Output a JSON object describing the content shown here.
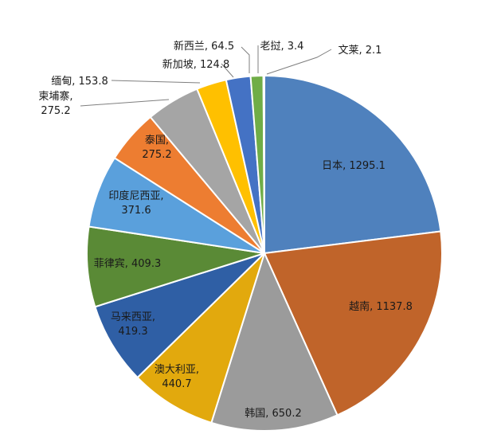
{
  "chart_data": {
    "type": "pie",
    "title": "",
    "slices": [
      {
        "name": "日本",
        "value": 1295.1,
        "label": "日本, 1295.1",
        "color": "#4f81bd"
      },
      {
        "name": "越南",
        "value": 1137.8,
        "label": "越南, 1137.8",
        "color": "#c0642a"
      },
      {
        "name": "韩国",
        "value": 650.2,
        "label": "韩国, 650.2",
        "color": "#9b9b9b"
      },
      {
        "name": "澳大利亚",
        "value": 440.7,
        "label": "澳大利亚, 440.7",
        "color": "#e2a90d"
      },
      {
        "name": "马来西亚",
        "value": 419.3,
        "label": "马来西亚, 419.3",
        "color": "#2f5fa5"
      },
      {
        "name": "菲律宾",
        "value": 409.3,
        "label": "菲律宾, 409.3",
        "color": "#5a8a36"
      },
      {
        "name": "印度尼西亚",
        "value": 371.6,
        "label": "印度尼西亚, 371.6",
        "color": "#5aa0dc"
      },
      {
        "name": "泰国",
        "value": 275.2,
        "label": "泰国, 275.2",
        "color": "#ed7d31"
      },
      {
        "name": "柬埔寨",
        "value": 275.2,
        "label": "柬埔寨, 275.2",
        "color": "#a5a5a5"
      },
      {
        "name": "缅甸",
        "value": 153.8,
        "label": "缅甸, 153.8",
        "color": "#ffc000"
      },
      {
        "name": "新加坡",
        "value": 124.8,
        "label": "新加坡, 124.8",
        "color": "#4472c4"
      },
      {
        "name": "新西兰",
        "value": 64.5,
        "label": "新西兰, 64.5",
        "color": "#70ad47"
      },
      {
        "name": "老挝",
        "value": 3.4,
        "label": "老挝, 3.4",
        "color": "#255e91"
      },
      {
        "name": "文莱",
        "value": 2.1,
        "label": "文莱, 2.1",
        "color": "#9e480e"
      }
    ]
  }
}
